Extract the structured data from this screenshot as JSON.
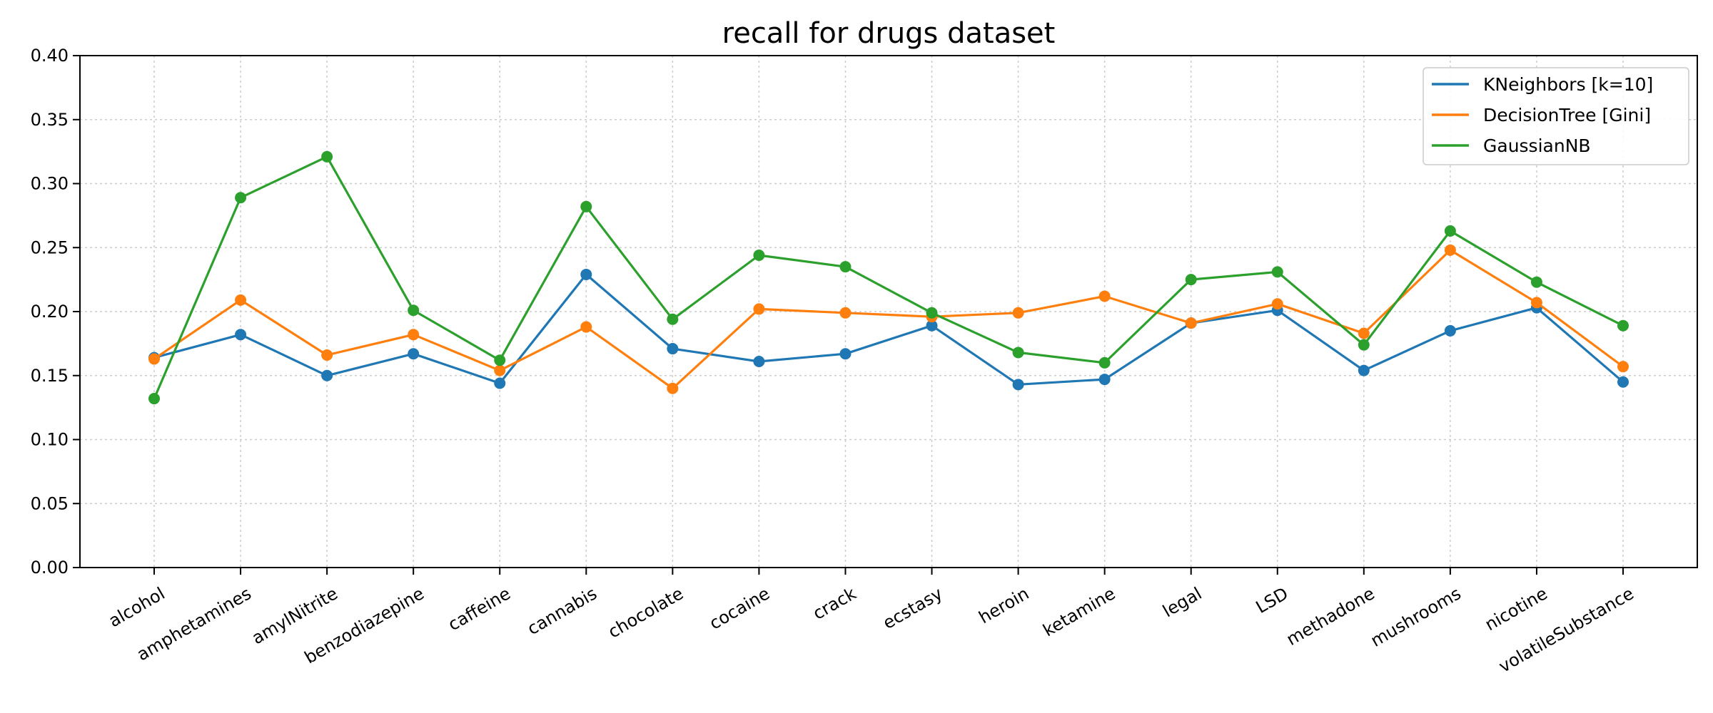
{
  "chart_data": {
    "type": "line",
    "title": "recall for drugs dataset",
    "xlabel": "",
    "ylabel": "",
    "ylim": [
      0,
      0.4
    ],
    "yticks": [
      "0.00",
      "0.05",
      "0.10",
      "0.15",
      "0.20",
      "0.25",
      "0.30",
      "0.35",
      "0.40"
    ],
    "grid": true,
    "legend_position": "top-right",
    "categories": [
      "alcohol",
      "amphetamines",
      "amylNitrite",
      "benzodiazepine",
      "caffeine",
      "cannabis",
      "chocolate",
      "cocaine",
      "crack",
      "ecstasy",
      "heroin",
      "ketamine",
      "legal",
      "LSD",
      "methadone",
      "mushrooms",
      "nicotine",
      "volatileSubstance"
    ],
    "series": [
      {
        "name": "KNeighbors [k=10]",
        "color": "#1f77b4",
        "values": [
          0.164,
          0.182,
          0.15,
          0.167,
          0.144,
          0.229,
          0.171,
          0.161,
          0.167,
          0.189,
          0.143,
          0.147,
          0.191,
          0.201,
          0.154,
          0.185,
          0.203,
          0.145
        ]
      },
      {
        "name": "DecisionTree [Gini]",
        "color": "#ff7f0e",
        "values": [
          0.163,
          0.209,
          0.166,
          0.182,
          0.154,
          0.188,
          0.14,
          0.202,
          0.199,
          0.196,
          0.199,
          0.212,
          0.191,
          0.206,
          0.183,
          0.248,
          0.207,
          0.157
        ]
      },
      {
        "name": "GaussianNB",
        "color": "#2ca02c",
        "values": [
          0.132,
          0.289,
          0.321,
          0.201,
          0.162,
          0.282,
          0.194,
          0.244,
          0.235,
          0.199,
          0.168,
          0.16,
          0.225,
          0.231,
          0.174,
          0.263,
          0.223,
          0.189
        ]
      }
    ]
  }
}
